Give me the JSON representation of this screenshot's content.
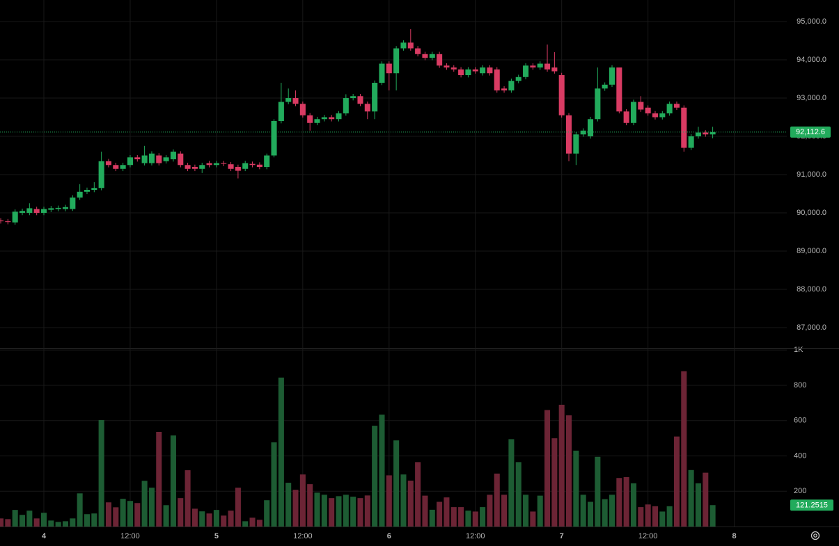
{
  "chart_data": {
    "type": "candlestick",
    "x": [
      -6,
      -5,
      -4,
      -3,
      -2,
      -1,
      0,
      1,
      2,
      3,
      4,
      5,
      6,
      7,
      8,
      9,
      10,
      11,
      12,
      13,
      14,
      15,
      16,
      17,
      18,
      19,
      20,
      21,
      22,
      23,
      24,
      25,
      26,
      27,
      28,
      29,
      30,
      31,
      32,
      33,
      34,
      35,
      36,
      37,
      38,
      39,
      40,
      41,
      42,
      43,
      44,
      45,
      46,
      47,
      48,
      49,
      50,
      51,
      52,
      53,
      54,
      55,
      56,
      57,
      58,
      59,
      60,
      61,
      62,
      63,
      64,
      65,
      66,
      67,
      68,
      69,
      70,
      71,
      72,
      73,
      74,
      75,
      76,
      77,
      78,
      79,
      80,
      81,
      82,
      83,
      84,
      85,
      86,
      87,
      88,
      89,
      90,
      91,
      92,
      93
    ],
    "open": [
      89800,
      89780,
      89750,
      90000,
      90000,
      90100,
      90000,
      90080,
      90100,
      90100,
      90100,
      90400,
      90550,
      90600,
      90650,
      91350,
      91250,
      91150,
      91250,
      91450,
      91300,
      91300,
      91500,
      91350,
      91400,
      91550,
      91250,
      91200,
      91150,
      91300,
      91250,
      91300,
      91270,
      91200,
      91150,
      91280,
      91260,
      91200,
      91500,
      92400,
      92900,
      93000,
      92850,
      92550,
      92350,
      92450,
      92500,
      92450,
      92600,
      93000,
      93050,
      92850,
      92650,
      93400,
      93900,
      93650,
      94300,
      94450,
      94300,
      94150,
      94050,
      94150,
      93850,
      93800,
      93750,
      93600,
      93750,
      93650,
      93800,
      93750,
      93250,
      93200,
      93450,
      93550,
      93850,
      93800,
      93900,
      93800,
      93600,
      92550,
      91550,
      92050,
      92000,
      92450,
      93250,
      93350,
      93800,
      92650,
      92350,
      92900,
      92750,
      92600,
      92500,
      92600,
      92850,
      92750,
      91700,
      92000,
      92100,
      92050
    ],
    "high": [
      89860,
      89840,
      90090,
      90110,
      90250,
      90160,
      90160,
      90180,
      90190,
      90210,
      90460,
      90750,
      90660,
      90800,
      91600,
      91410,
      91310,
      91310,
      91510,
      91510,
      91750,
      91610,
      91560,
      91510,
      91660,
      91610,
      91310,
      91260,
      91310,
      91360,
      91360,
      91360,
      91330,
      91260,
      91360,
      91340,
      91320,
      91550,
      92450,
      93400,
      93250,
      93200,
      92910,
      92610,
      92510,
      92560,
      92560,
      92660,
      93100,
      93110,
      93110,
      92910,
      93460,
      93960,
      93960,
      94360,
      94510,
      94800,
      94360,
      94210,
      94210,
      94210,
      93910,
      93860,
      93810,
      93810,
      93810,
      93860,
      93860,
      93810,
      93310,
      93510,
      93610,
      93910,
      93910,
      93960,
      94400,
      94200,
      93660,
      92610,
      92110,
      92210,
      92510,
      93800,
      93410,
      93860,
      93800,
      92710,
      92960,
      93050,
      92810,
      92660,
      92660,
      92910,
      92910,
      92810,
      92060,
      92250,
      92160,
      92250
    ],
    "low": [
      89720,
      89700,
      89690,
      89940,
      89940,
      89940,
      89940,
      90020,
      90040,
      90040,
      90050,
      90340,
      90490,
      90540,
      90590,
      91190,
      91090,
      91090,
      91190,
      91340,
      91240,
      91240,
      91240,
      91290,
      91340,
      91190,
      91090,
      91090,
      91040,
      91190,
      91190,
      91220,
      91090,
      90900,
      91090,
      91190,
      91140,
      91140,
      91450,
      92340,
      92840,
      92790,
      92490,
      92150,
      92290,
      92390,
      92390,
      92390,
      92540,
      92940,
      92790,
      92450,
      92450,
      93340,
      93200,
      93200,
      94240,
      94240,
      94090,
      93990,
      93990,
      93790,
      93740,
      93690,
      93540,
      93540,
      93640,
      93590,
      93590,
      93140,
      93140,
      93140,
      93390,
      93490,
      93740,
      93740,
      93690,
      93640,
      92490,
      91350,
      91250,
      91990,
      91940,
      92390,
      93190,
      93290,
      92600,
      92290,
      92290,
      92640,
      92540,
      92440,
      92440,
      92540,
      92690,
      91600,
      91640,
      91940,
      91990,
      91950
    ],
    "close": [
      89780,
      89760,
      90030,
      90050,
      90120,
      90000,
      90100,
      90120,
      90130,
      90150,
      90400,
      90550,
      90600,
      90650,
      91350,
      91250,
      91150,
      91250,
      91450,
      91400,
      91500,
      91550,
      91300,
      91450,
      91600,
      91250,
      91150,
      91150,
      91250,
      91250,
      91300,
      91280,
      91150,
      91100,
      91300,
      91250,
      91200,
      91500,
      92400,
      92900,
      93000,
      92850,
      92550,
      92350,
      92450,
      92500,
      92450,
      92600,
      93000,
      93050,
      92850,
      92650,
      93400,
      93900,
      93650,
      94300,
      94450,
      94300,
      94150,
      94050,
      94150,
      93850,
      93800,
      93750,
      93600,
      93750,
      93700,
      93800,
      93650,
      93200,
      93200,
      93450,
      93550,
      93850,
      93800,
      93900,
      93750,
      93700,
      92550,
      91550,
      92050,
      92150,
      92450,
      93250,
      93350,
      93800,
      92650,
      92350,
      92900,
      92700,
      92600,
      92500,
      92600,
      92850,
      92750,
      91700,
      92000,
      92100,
      92050,
      92112.6
    ],
    "volume": [
      46,
      42,
      94,
      66,
      90,
      46,
      78,
      34,
      26,
      30,
      46,
      188,
      70,
      74,
      603,
      137,
      109,
      157,
      145,
      133,
      259,
      220,
      536,
      121,
      516,
      161,
      319,
      101,
      86,
      74,
      94,
      62,
      90,
      220,
      30,
      50,
      38,
      149,
      477,
      844,
      248,
      208,
      295,
      240,
      192,
      180,
      161,
      172,
      180,
      169,
      161,
      176,
      571,
      634,
      290,
      488,
      295,
      260,
      365,
      175,
      95,
      140,
      165,
      110,
      110,
      90,
      85,
      110,
      180,
      300,
      180,
      495,
      365,
      180,
      85,
      175,
      660,
      500,
      690,
      630,
      430,
      180,
      140,
      395,
      155,
      180,
      275,
      280,
      245,
      110,
      125,
      115,
      85,
      115,
      510,
      880,
      320,
      245,
      305,
      121.2515
    ],
    "last_label": {
      "value": 92112.6,
      "label": "92,112.6"
    },
    "up_color": "#22ab5c",
    "down_color": "#d93b63",
    "volume_up_color": "#1d5c33",
    "volume_down_color": "#6c2435",
    "xlim": [
      -6.1,
      103.3
    ],
    "xticks": [
      {
        "value": 0,
        "label": "4"
      },
      {
        "value": 12,
        "label": "12:00"
      },
      {
        "value": 24,
        "label": "5"
      },
      {
        "value": 36,
        "label": "12:00"
      },
      {
        "value": 48,
        "label": "6"
      },
      {
        "value": 60,
        "label": "12:00"
      },
      {
        "value": 72,
        "label": "7"
      },
      {
        "value": 84,
        "label": "12:00"
      },
      {
        "value": 96,
        "label": "8"
      }
    ],
    "ylim": [
      86473,
      95564
    ],
    "yticks": [
      {
        "value": 87000,
        "label": "87,000.0"
      },
      {
        "value": 88000,
        "label": "88,000.0"
      },
      {
        "value": 89000,
        "label": "89,000.0"
      },
      {
        "value": 90000,
        "label": "90,000.0"
      },
      {
        "value": 91000,
        "label": "91,000.0"
      },
      {
        "value": 92000,
        "label": "92,000.0"
      },
      {
        "value": 93000,
        "label": "93,000.0"
      },
      {
        "value": 94000,
        "label": "94,000.0"
      },
      {
        "value": 95000,
        "label": "95,000.0"
      }
    ],
    "volume_lim": [
      0,
      1005
    ],
    "volume_ticks": [
      200,
      400,
      600,
      800,
      {
        "value": 1000,
        "label": "1K"
      }
    ],
    "grid": true
  }
}
